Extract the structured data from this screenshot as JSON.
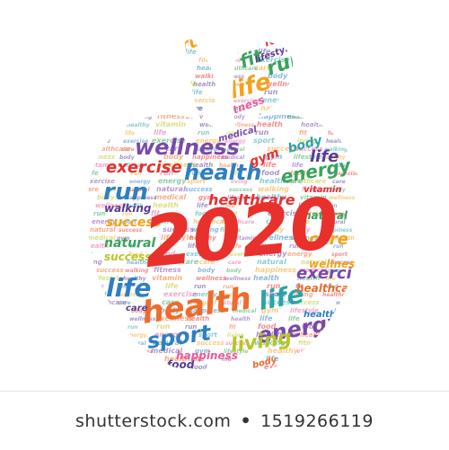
{
  "image": {
    "headline": "2020",
    "palette": [
      "#e8312d",
      "#7b49a8",
      "#2f7fc1",
      "#39a35b",
      "#f4a21b",
      "#e95d9b",
      "#2aa3a8",
      "#b7c524",
      "#5a3d92",
      "#ef6b2b"
    ],
    "year_color": "#e8312d",
    "words": [
      {
        "text": "wellness"
      },
      {
        "text": "health"
      },
      {
        "text": "health"
      },
      {
        "text": "life"
      },
      {
        "text": "life"
      },
      {
        "text": "life"
      },
      {
        "text": "life"
      },
      {
        "text": "run"
      },
      {
        "text": "run"
      },
      {
        "text": "run"
      },
      {
        "text": "fit"
      },
      {
        "text": "food"
      },
      {
        "text": "food"
      },
      {
        "text": "exercise"
      },
      {
        "text": "exercise"
      },
      {
        "text": "energy"
      },
      {
        "text": "energy"
      },
      {
        "text": "sport"
      },
      {
        "text": "living"
      },
      {
        "text": "healthcare"
      },
      {
        "text": "healthcare"
      },
      {
        "text": "care"
      },
      {
        "text": "care"
      },
      {
        "text": "natural"
      },
      {
        "text": "natural"
      },
      {
        "text": "success"
      },
      {
        "text": "success"
      },
      {
        "text": "walking"
      },
      {
        "text": "fitness"
      },
      {
        "text": "body"
      },
      {
        "text": "body"
      },
      {
        "text": "happiness"
      },
      {
        "text": "medical"
      },
      {
        "text": "gym"
      },
      {
        "text": "lifestyle"
      },
      {
        "text": "healthy"
      },
      {
        "text": "vitamin"
      },
      {
        "text": "wellness"
      }
    ]
  },
  "footer": {
    "brand": "shutterstock.com",
    "separator": "•",
    "image_id": "1519266119"
  }
}
